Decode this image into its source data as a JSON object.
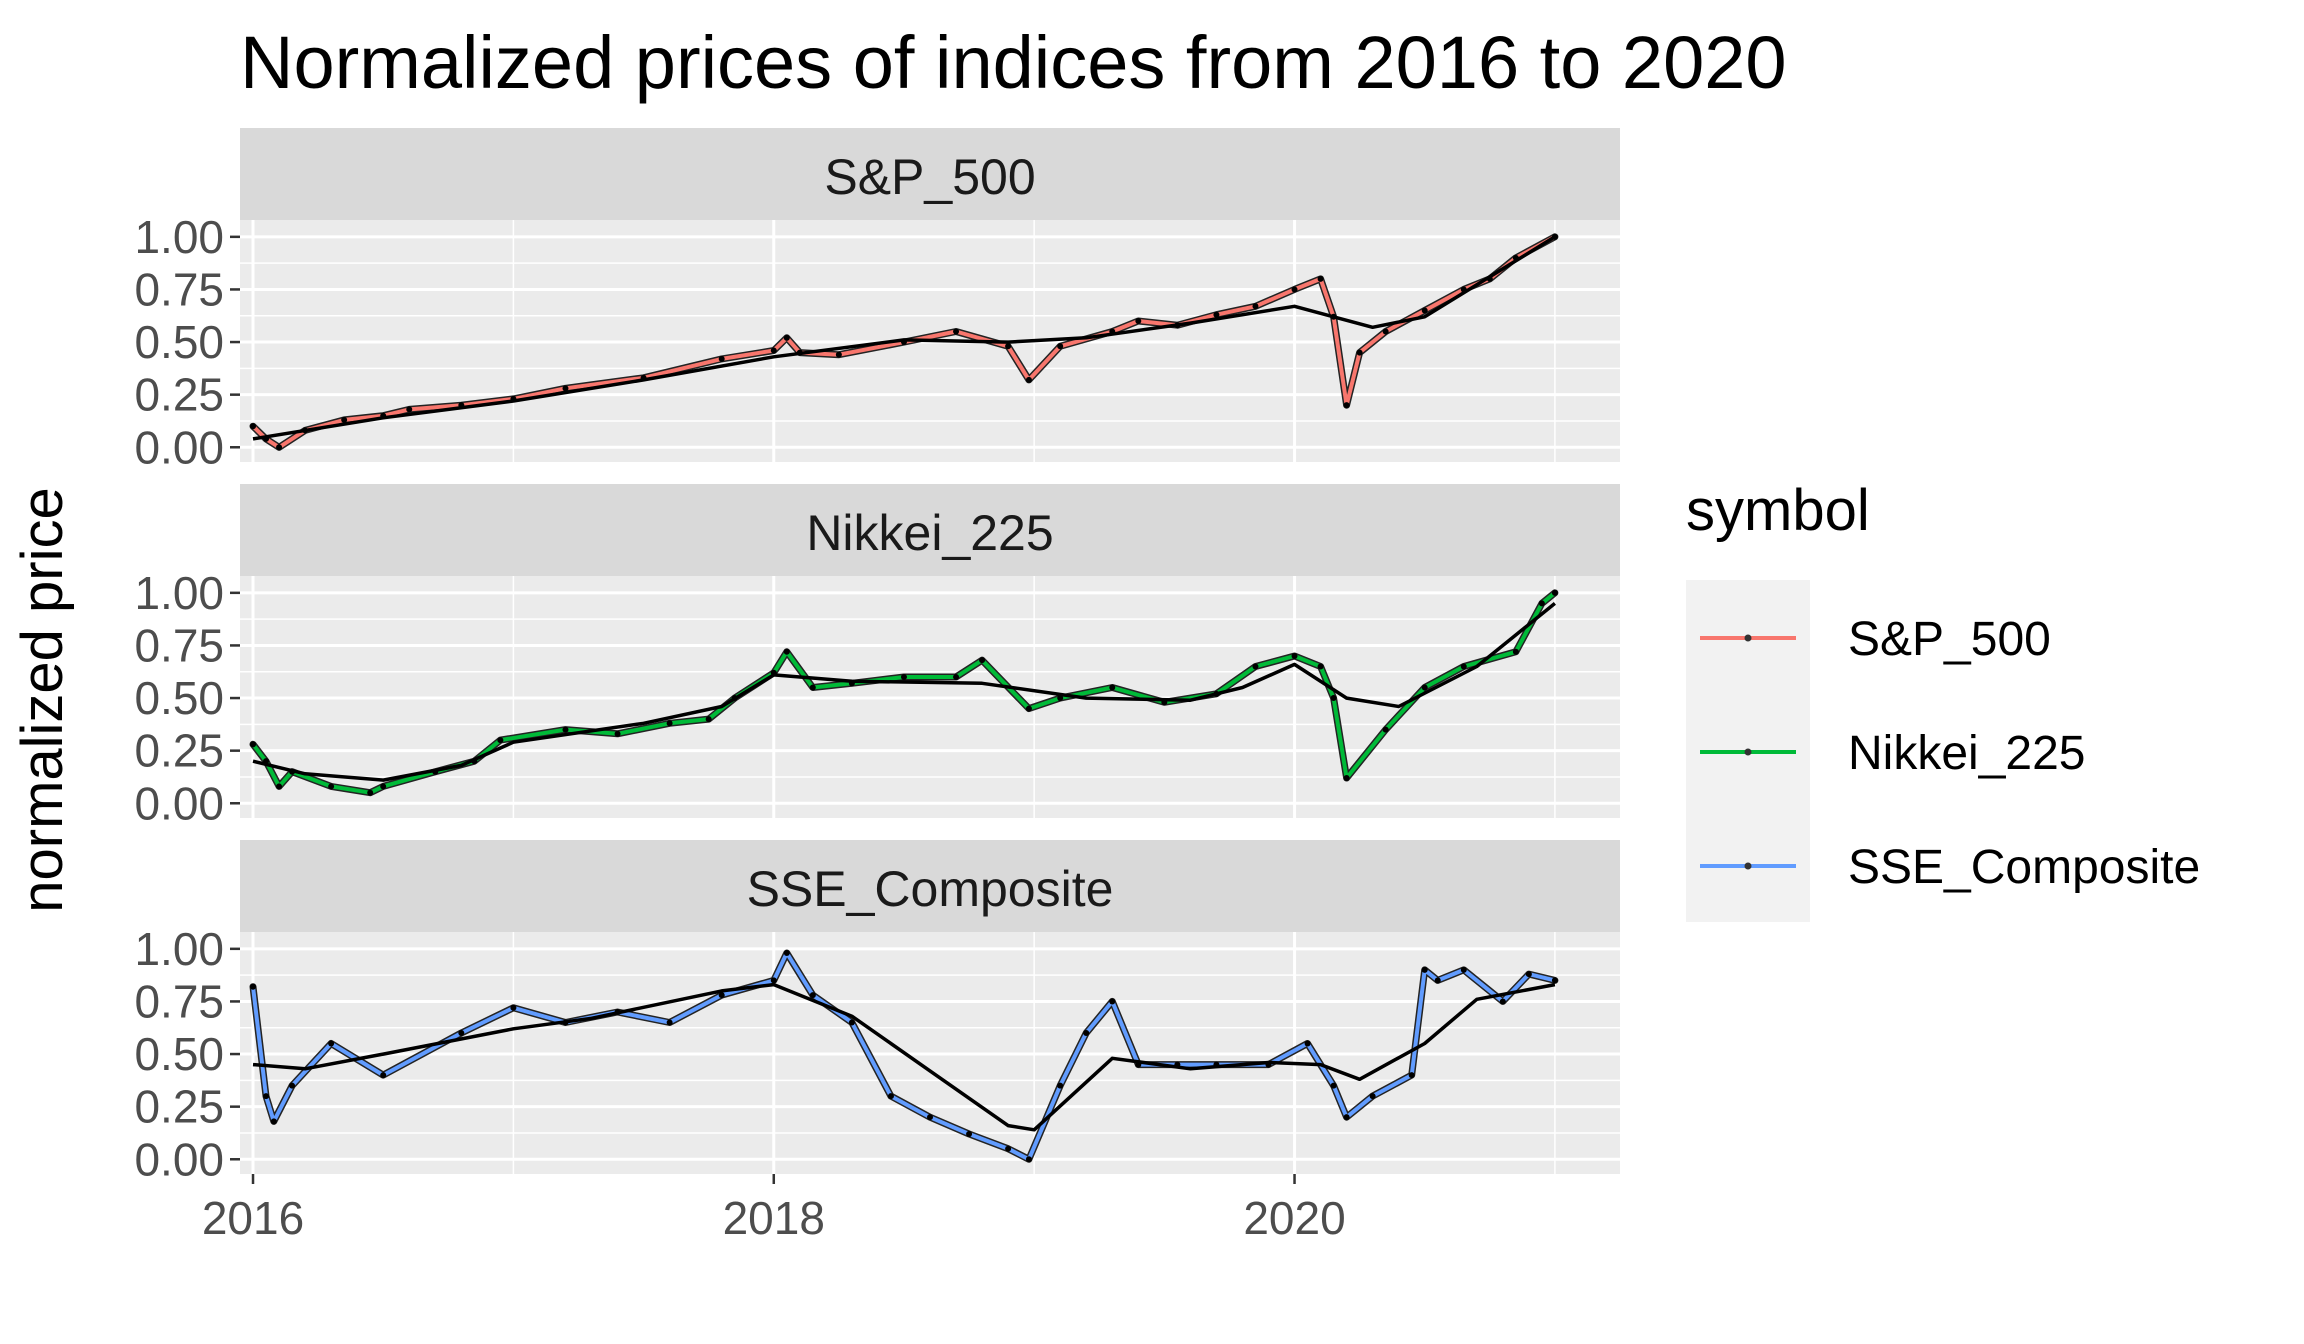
{
  "chart_data": {
    "type": "line",
    "title": "Normalized prices of indices from 2016 to 2020",
    "xlabel": "",
    "ylabel": "normalized price",
    "xlim": [
      2015.95,
      2021.25
    ],
    "ylim": [
      0,
      1
    ],
    "x_ticks": [
      2016,
      2018,
      2020
    ],
    "x_tick_labels": [
      "2016",
      "2018",
      "2020"
    ],
    "y_ticks": [
      0,
      0.25,
      0.5,
      0.75,
      1.0
    ],
    "y_tick_labels": [
      "0.00",
      "0.25",
      "0.50",
      "0.75",
      "1.00"
    ],
    "grid": true,
    "facets": "vertical, one panel per symbol",
    "legend": {
      "title": "symbol",
      "placement": "right",
      "entries": [
        "S&P_500",
        "Nikkei_225",
        "SSE_Composite"
      ]
    },
    "colors": {
      "S&P_500": "#F8766D",
      "Nikkei_225": "#00BA38",
      "SSE_Composite": "#619CFF",
      "smooth": "#000000",
      "panel_bg": "#EBEBEB",
      "strip_bg": "#D9D9D9"
    },
    "series": [
      {
        "name": "S&P_500",
        "x": [
          2016.0,
          2016.05,
          2016.1,
          2016.2,
          2016.35,
          2016.5,
          2016.6,
          2016.8,
          2017.0,
          2017.2,
          2017.5,
          2017.8,
          2018.0,
          2018.05,
          2018.1,
          2018.25,
          2018.5,
          2018.7,
          2018.9,
          2018.98,
          2019.1,
          2019.3,
          2019.4,
          2019.55,
          2019.7,
          2019.85,
          2020.0,
          2020.1,
          2020.15,
          2020.2,
          2020.25,
          2020.35,
          2020.5,
          2020.65,
          2020.75,
          2020.85,
          2021.0
        ],
        "y": [
          0.1,
          0.04,
          0.0,
          0.08,
          0.13,
          0.15,
          0.18,
          0.2,
          0.23,
          0.28,
          0.33,
          0.42,
          0.46,
          0.52,
          0.45,
          0.44,
          0.5,
          0.55,
          0.48,
          0.32,
          0.48,
          0.55,
          0.6,
          0.58,
          0.63,
          0.67,
          0.75,
          0.8,
          0.62,
          0.2,
          0.45,
          0.55,
          0.65,
          0.75,
          0.8,
          0.9,
          1.0
        ],
        "smooth_x": [
          2016.0,
          2016.5,
          2017.0,
          2017.5,
          2018.0,
          2018.5,
          2018.9,
          2019.2,
          2019.6,
          2020.0,
          2020.3,
          2020.5,
          2020.75,
          2021.0
        ],
        "smooth_y": [
          0.04,
          0.14,
          0.22,
          0.32,
          0.43,
          0.51,
          0.5,
          0.52,
          0.59,
          0.67,
          0.57,
          0.62,
          0.81,
          1.0
        ]
      },
      {
        "name": "Nikkei_225",
        "x": [
          2016.0,
          2016.05,
          2016.1,
          2016.15,
          2016.3,
          2016.45,
          2016.5,
          2016.7,
          2016.85,
          2016.95,
          2017.2,
          2017.4,
          2017.6,
          2017.75,
          2017.85,
          2018.0,
          2018.05,
          2018.15,
          2018.3,
          2018.5,
          2018.7,
          2018.8,
          2018.98,
          2019.1,
          2019.3,
          2019.5,
          2019.7,
          2019.85,
          2020.0,
          2020.1,
          2020.15,
          2020.2,
          2020.35,
          2020.5,
          2020.65,
          2020.85,
          2020.95,
          2021.0
        ],
        "y": [
          0.28,
          0.2,
          0.08,
          0.15,
          0.08,
          0.05,
          0.08,
          0.15,
          0.2,
          0.3,
          0.35,
          0.33,
          0.38,
          0.4,
          0.5,
          0.62,
          0.72,
          0.55,
          0.57,
          0.6,
          0.6,
          0.68,
          0.45,
          0.5,
          0.55,
          0.48,
          0.52,
          0.65,
          0.7,
          0.65,
          0.5,
          0.12,
          0.35,
          0.55,
          0.65,
          0.72,
          0.95,
          1.0
        ],
        "smooth_x": [
          2016.0,
          2016.2,
          2016.5,
          2016.8,
          2017.0,
          2017.5,
          2017.8,
          2018.0,
          2018.3,
          2018.8,
          2019.2,
          2019.6,
          2019.8,
          2020.0,
          2020.2,
          2020.4,
          2020.7,
          2021.0
        ],
        "smooth_y": [
          0.2,
          0.14,
          0.11,
          0.18,
          0.29,
          0.38,
          0.46,
          0.61,
          0.58,
          0.57,
          0.5,
          0.49,
          0.55,
          0.66,
          0.5,
          0.46,
          0.65,
          0.95
        ]
      },
      {
        "name": "SSE_Composite",
        "x": [
          2016.0,
          2016.05,
          2016.08,
          2016.15,
          2016.3,
          2016.5,
          2016.8,
          2017.0,
          2017.2,
          2017.4,
          2017.6,
          2017.8,
          2018.0,
          2018.05,
          2018.15,
          2018.3,
          2018.45,
          2018.6,
          2018.75,
          2018.9,
          2018.98,
          2019.1,
          2019.2,
          2019.3,
          2019.4,
          2019.55,
          2019.7,
          2019.9,
          2020.05,
          2020.15,
          2020.2,
          2020.3,
          2020.45,
          2020.5,
          2020.55,
          2020.65,
          2020.8,
          2020.9,
          2021.0
        ],
        "y": [
          0.82,
          0.3,
          0.18,
          0.35,
          0.55,
          0.4,
          0.6,
          0.72,
          0.65,
          0.7,
          0.65,
          0.78,
          0.85,
          0.98,
          0.78,
          0.65,
          0.3,
          0.2,
          0.12,
          0.05,
          0.0,
          0.35,
          0.6,
          0.75,
          0.45,
          0.45,
          0.45,
          0.45,
          0.55,
          0.35,
          0.2,
          0.3,
          0.4,
          0.9,
          0.85,
          0.9,
          0.75,
          0.88,
          0.85
        ],
        "smooth_x": [
          2016.0,
          2016.2,
          2016.5,
          2017.0,
          2017.3,
          2017.8,
          2018.0,
          2018.3,
          2018.6,
          2018.9,
          2019.0,
          2019.3,
          2019.6,
          2019.9,
          2020.1,
          2020.25,
          2020.5,
          2020.7,
          2021.0
        ],
        "smooth_y": [
          0.45,
          0.43,
          0.5,
          0.62,
          0.67,
          0.8,
          0.83,
          0.68,
          0.42,
          0.16,
          0.14,
          0.48,
          0.43,
          0.46,
          0.45,
          0.38,
          0.55,
          0.76,
          0.83
        ]
      }
    ]
  }
}
